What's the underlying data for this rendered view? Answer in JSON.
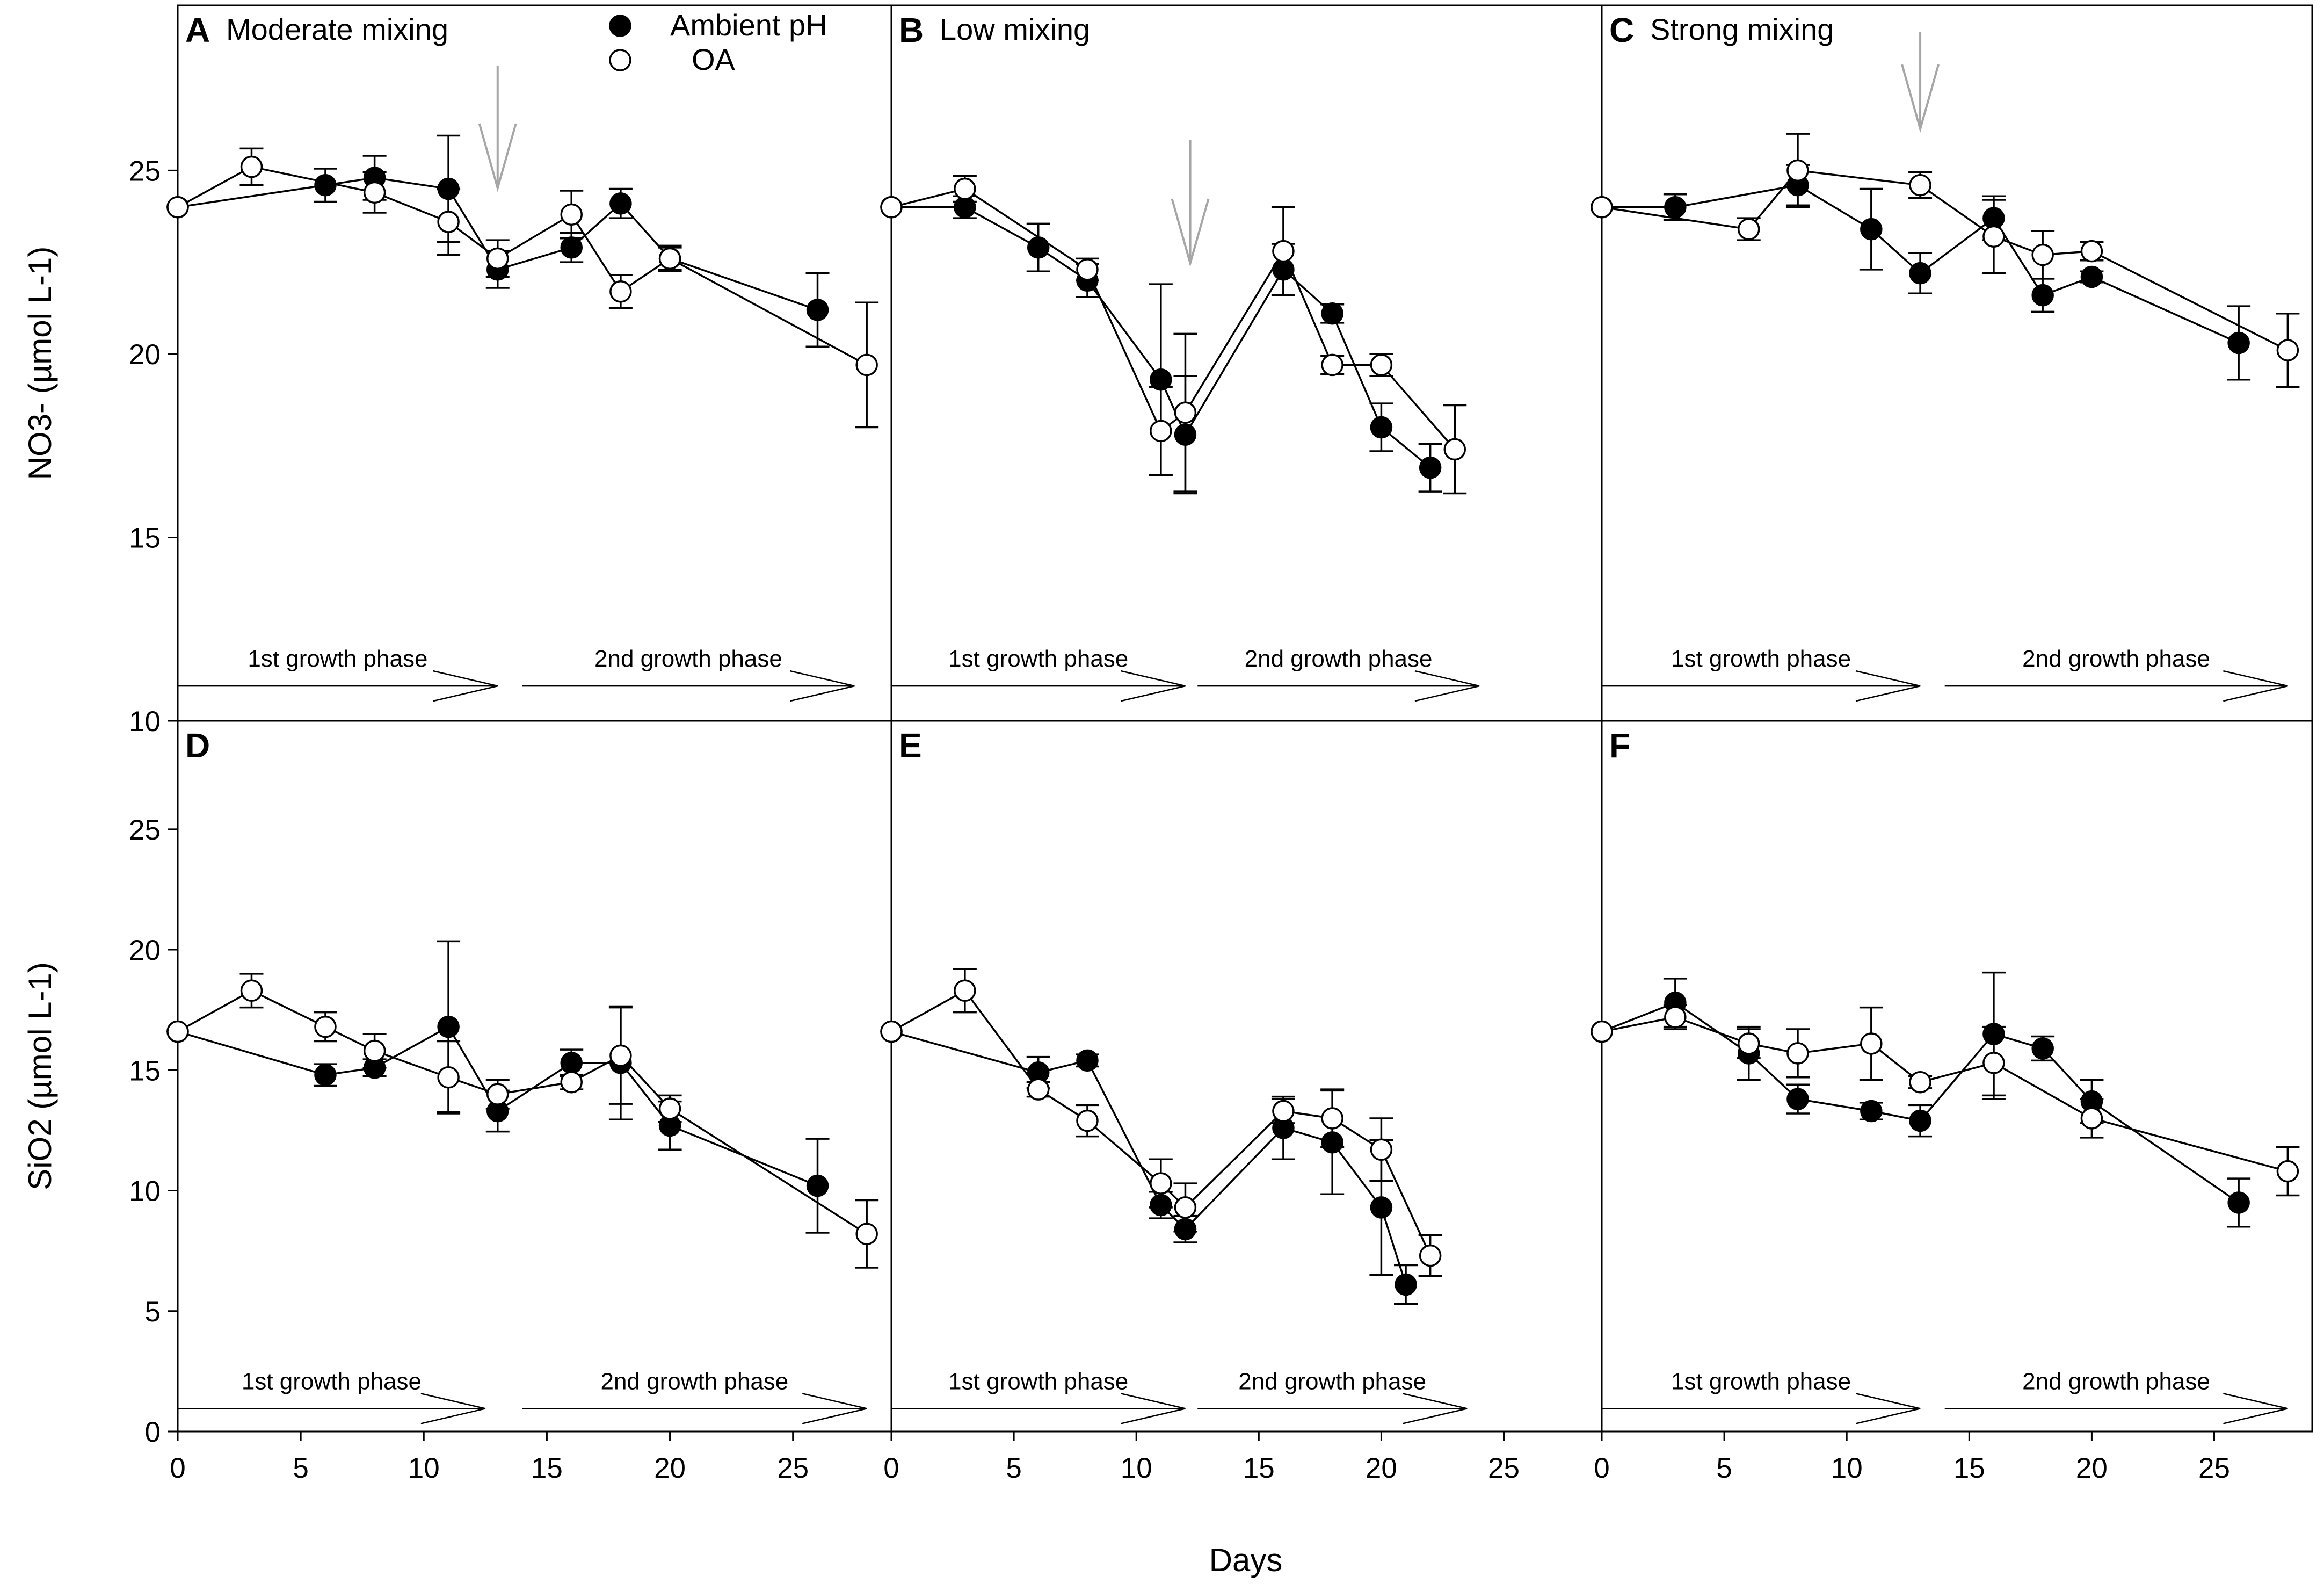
{
  "chart_data": {
    "type": "line",
    "x_axis": {
      "label": "Days",
      "ticks": [
        0,
        5,
        10,
        15,
        20,
        25
      ],
      "range": [
        0,
        29
      ]
    },
    "legend": [
      {
        "name": "Ambient pH",
        "marker": "filled-circle",
        "color": "#000000"
      },
      {
        "name": "OA",
        "marker": "open-circle",
        "color": "#000000"
      }
    ],
    "colors": {
      "line": "#000000",
      "arrow": "#a6a6a6",
      "background": "#ffffff"
    },
    "rows": [
      {
        "ylabel": "NO3- (µmol L-1)",
        "ylim": [
          10,
          29.5
        ],
        "yticks": [
          10,
          15,
          20,
          25
        ]
      },
      {
        "ylabel": "SiO2 (µmol L-1)",
        "ylim": [
          0,
          29.5
        ],
        "yticks": [
          0,
          5,
          10,
          15,
          20,
          25
        ]
      }
    ],
    "phase_labels": [
      "1st growth phase",
      "2nd growth phase"
    ],
    "panels": [
      {
        "id": "A",
        "title": "Moderate mixing",
        "row": 0,
        "col": 0,
        "event_arrow_day": 13,
        "phases": [
          [
            0,
            13
          ],
          [
            14,
            27.5
          ]
        ],
        "series": [
          {
            "name": "Ambient pH",
            "x": [
              0,
              6,
              8,
              11,
              13,
              16,
              18,
              20,
              26
            ],
            "y": [
              24.0,
              24.6,
              24.8,
              24.5,
              22.3,
              22.9,
              24.1,
              22.6,
              21.2
            ],
            "err": [
              0,
              0.45,
              0.6,
              1.45,
              0.5,
              0.4,
              0.4,
              0.3,
              1.0
            ]
          },
          {
            "name": "OA",
            "x": [
              0,
              3,
              8,
              11,
              13,
              16,
              18,
              20,
              28
            ],
            "y": [
              24.0,
              25.1,
              24.4,
              23.6,
              22.6,
              23.8,
              21.7,
              22.6,
              19.7
            ],
            "err": [
              0,
              0.5,
              0.55,
              0.9,
              0.5,
              0.65,
              0.45,
              0.35,
              1.7
            ]
          }
        ]
      },
      {
        "id": "B",
        "title": "Low mixing",
        "row": 0,
        "col": 1,
        "event_arrow_day": 12.2,
        "phases": [
          [
            0,
            12
          ],
          [
            12.5,
            24
          ]
        ],
        "series": [
          {
            "name": "Ambient pH",
            "x": [
              0,
              3,
              6,
              8,
              11,
              12,
              16,
              18,
              20,
              22
            ],
            "y": [
              24.0,
              24.0,
              22.9,
              22.0,
              19.3,
              17.8,
              22.3,
              21.1,
              18.0,
              16.9
            ],
            "err": [
              0,
              0.3,
              0.65,
              0.45,
              2.6,
              1.6,
              0.7,
              0.25,
              0.65,
              0.65
            ]
          },
          {
            "name": "OA",
            "x": [
              0,
              3,
              8,
              11,
              12,
              16,
              18,
              20,
              23
            ],
            "y": [
              24.0,
              24.5,
              22.3,
              17.9,
              18.4,
              22.8,
              19.7,
              19.7,
              17.4
            ],
            "err": [
              0,
              0.35,
              0.3,
              1.2,
              2.15,
              1.2,
              0.25,
              0.3,
              1.2
            ]
          }
        ]
      },
      {
        "id": "C",
        "title": "Strong mixing",
        "row": 0,
        "col": 2,
        "event_arrow_day": 13,
        "phases": [
          [
            0,
            13
          ],
          [
            14,
            28
          ]
        ],
        "series": [
          {
            "name": "Ambient pH",
            "x": [
              0,
              3,
              8,
              11,
              13,
              16,
              18,
              20,
              26
            ],
            "y": [
              24.0,
              24.0,
              24.6,
              23.4,
              22.2,
              23.7,
              21.6,
              22.1,
              20.3
            ],
            "err": [
              0,
              0.35,
              0.55,
              1.1,
              0.55,
              0.6,
              0.45,
              0.15,
              1.0
            ]
          },
          {
            "name": "OA",
            "x": [
              0,
              6,
              8,
              13,
              16,
              18,
              20,
              28
            ],
            "y": [
              24.0,
              23.4,
              25.0,
              24.6,
              23.2,
              22.7,
              22.8,
              20.1
            ],
            "err": [
              0,
              0.3,
              1.0,
              0.35,
              1.0,
              0.65,
              0.25,
              1.0
            ]
          }
        ]
      },
      {
        "id": "D",
        "title": "",
        "row": 1,
        "col": 0,
        "event_arrow_day": null,
        "phases": [
          [
            0,
            12.5
          ],
          [
            14,
            28
          ]
        ],
        "series": [
          {
            "name": "Ambient pH",
            "x": [
              0,
              6,
              8,
              11,
              13,
              16,
              18,
              20,
              26
            ],
            "y": [
              16.6,
              14.8,
              15.1,
              16.8,
              13.3,
              15.3,
              15.3,
              12.7,
              10.2
            ],
            "err": [
              0,
              0.45,
              0.35,
              3.55,
              0.85,
              0.55,
              2.35,
              1.0,
              1.95
            ]
          },
          {
            "name": "OA",
            "x": [
              0,
              3,
              6,
              8,
              11,
              13,
              16,
              18,
              20,
              28
            ],
            "y": [
              16.6,
              18.3,
              16.8,
              15.8,
              14.7,
              14.0,
              14.5,
              15.6,
              13.4,
              8.2
            ],
            "err": [
              0,
              0.7,
              0.6,
              0.7,
              1.5,
              0.6,
              0.3,
              2.0,
              0.55,
              1.4
            ]
          }
        ]
      },
      {
        "id": "E",
        "title": "",
        "row": 1,
        "col": 1,
        "event_arrow_day": null,
        "phases": [
          [
            0,
            12
          ],
          [
            12.5,
            23.5
          ]
        ],
        "series": [
          {
            "name": "Ambient pH",
            "x": [
              0,
              6,
              8,
              11,
              12,
              16,
              18,
              20,
              21
            ],
            "y": [
              16.6,
              14.9,
              15.4,
              9.4,
              8.4,
              12.6,
              12.0,
              9.3,
              6.1
            ],
            "err": [
              0,
              0.65,
              0.25,
              0.55,
              0.55,
              1.3,
              2.15,
              2.8,
              0.8
            ]
          },
          {
            "name": "OA",
            "x": [
              0,
              3,
              6,
              8,
              11,
              12,
              16,
              18,
              20,
              22
            ],
            "y": [
              16.6,
              18.3,
              14.2,
              12.9,
              10.3,
              9.3,
              13.3,
              13.0,
              11.7,
              7.3
            ],
            "err": [
              0,
              0.9,
              0.3,
              0.65,
              1.0,
              1.0,
              0.5,
              1.2,
              1.3,
              0.85
            ]
          }
        ]
      },
      {
        "id": "F",
        "title": "",
        "row": 1,
        "col": 2,
        "event_arrow_day": null,
        "phases": [
          [
            0,
            13
          ],
          [
            14,
            28
          ]
        ],
        "series": [
          {
            "name": "Ambient pH",
            "x": [
              0,
              3,
              6,
              8,
              11,
              13,
              16,
              18,
              20,
              26
            ],
            "y": [
              16.6,
              17.8,
              15.7,
              13.8,
              13.3,
              12.9,
              16.5,
              15.9,
              13.7,
              9.5
            ],
            "err": [
              0,
              1.0,
              1.1,
              0.6,
              0.35,
              0.65,
              2.55,
              0.5,
              0.9,
              1.0
            ]
          },
          {
            "name": "OA",
            "x": [
              0,
              3,
              6,
              8,
              11,
              13,
              16,
              20,
              28
            ],
            "y": [
              16.6,
              17.2,
              16.1,
              15.7,
              16.1,
              14.5,
              15.3,
              13.0,
              10.8
            ],
            "err": [
              0,
              0.5,
              0.6,
              1.0,
              1.5,
              0.25,
              1.5,
              0.8,
              1.0
            ]
          }
        ]
      }
    ]
  }
}
